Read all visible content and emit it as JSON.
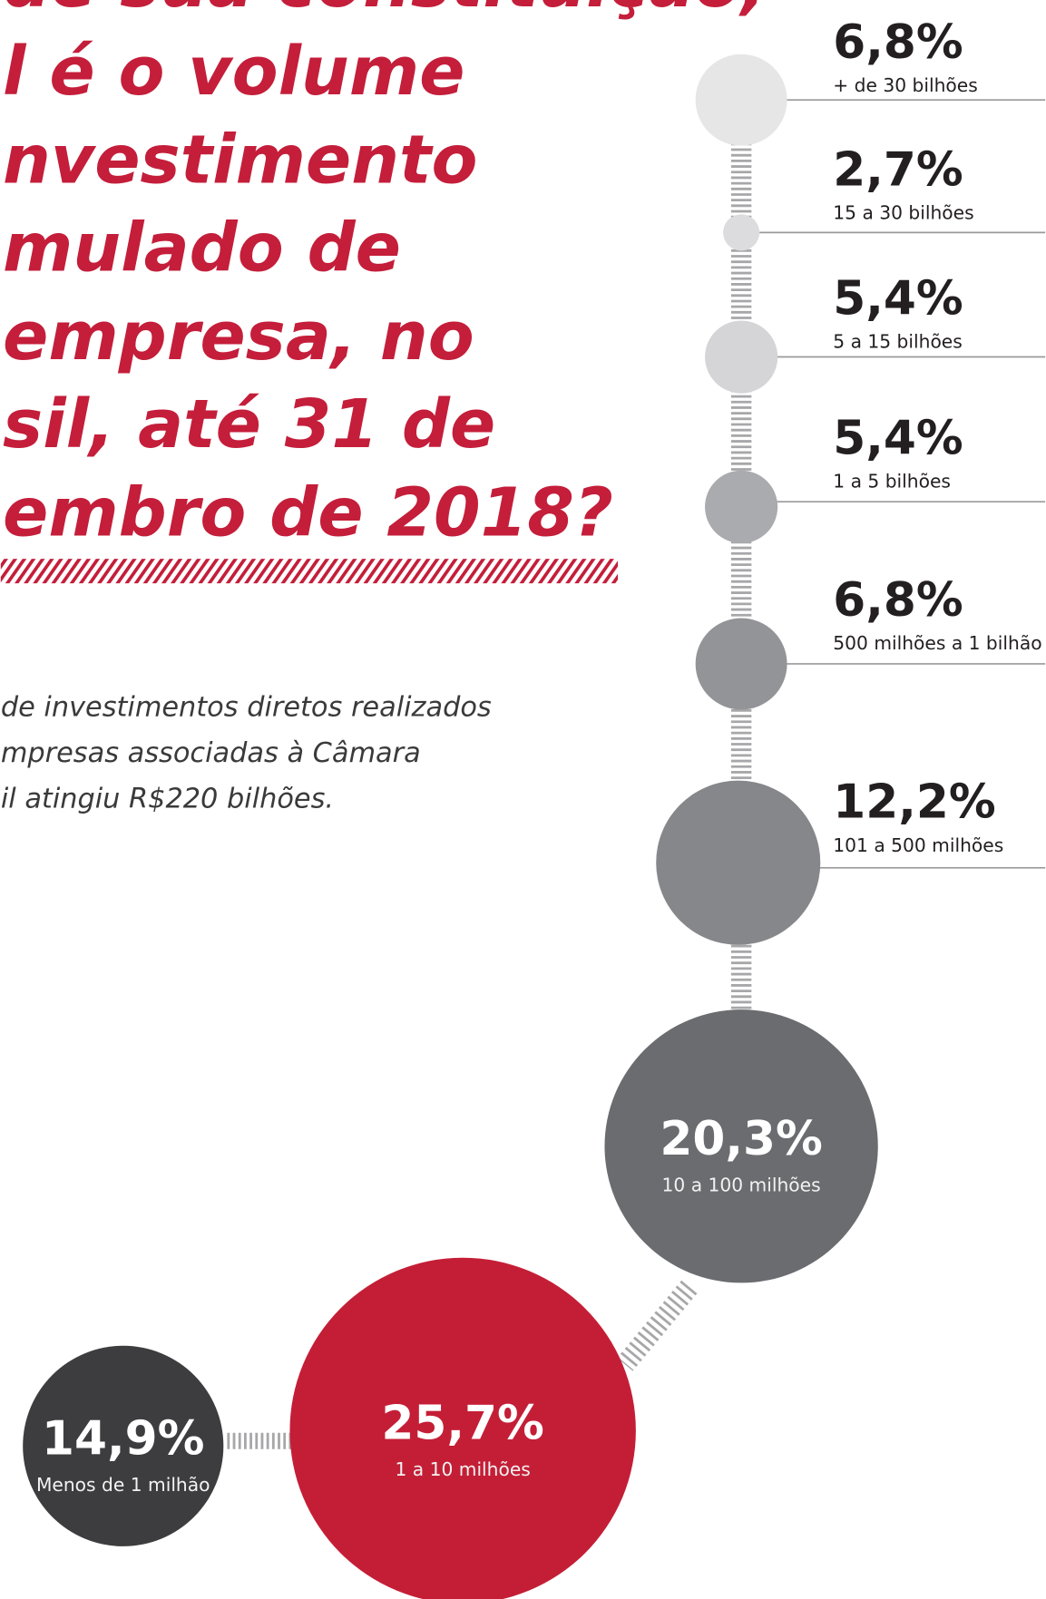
{
  "chart_data": {
    "type": "bubble",
    "title": [
      "de sua constituição,",
      "l é o volume",
      "nvestimento",
      "mulado de",
      "empresa, no",
      "sil, até 31 de",
      "embro de 2018?"
    ],
    "subtitle": [
      "de investimentos diretos realizados",
      "mpresas associadas à Câmara",
      "il atingiu R$220 bilhões."
    ],
    "categories": [
      "+ de 30 bilhões",
      "15 a 30 bilhões",
      "5 a 15 bilhões",
      "1 a 5 bilhões",
      "500 milhões a 1 bilhão",
      "101 a 500 milhões",
      "10 a 100 milhões",
      "1 a 10 milhões",
      "Menos de 1 milhão"
    ],
    "values": [
      6.8,
      2.7,
      5.4,
      5.4,
      6.8,
      12.2,
      20.3,
      25.7,
      14.9
    ],
    "value_labels": [
      "6,8%",
      "2,7%",
      "5,4%",
      "5,4%",
      "6,8%",
      "12,2%",
      "20,3%",
      "25,7%",
      "14,9%"
    ],
    "colors": [
      "#e6e6e7",
      "#dcdcde",
      "#d5d5d7",
      "#aaabae",
      "#939497",
      "#86878a",
      "#6b6c70",
      "#c41e36",
      "#3d3d3f"
    ]
  }
}
